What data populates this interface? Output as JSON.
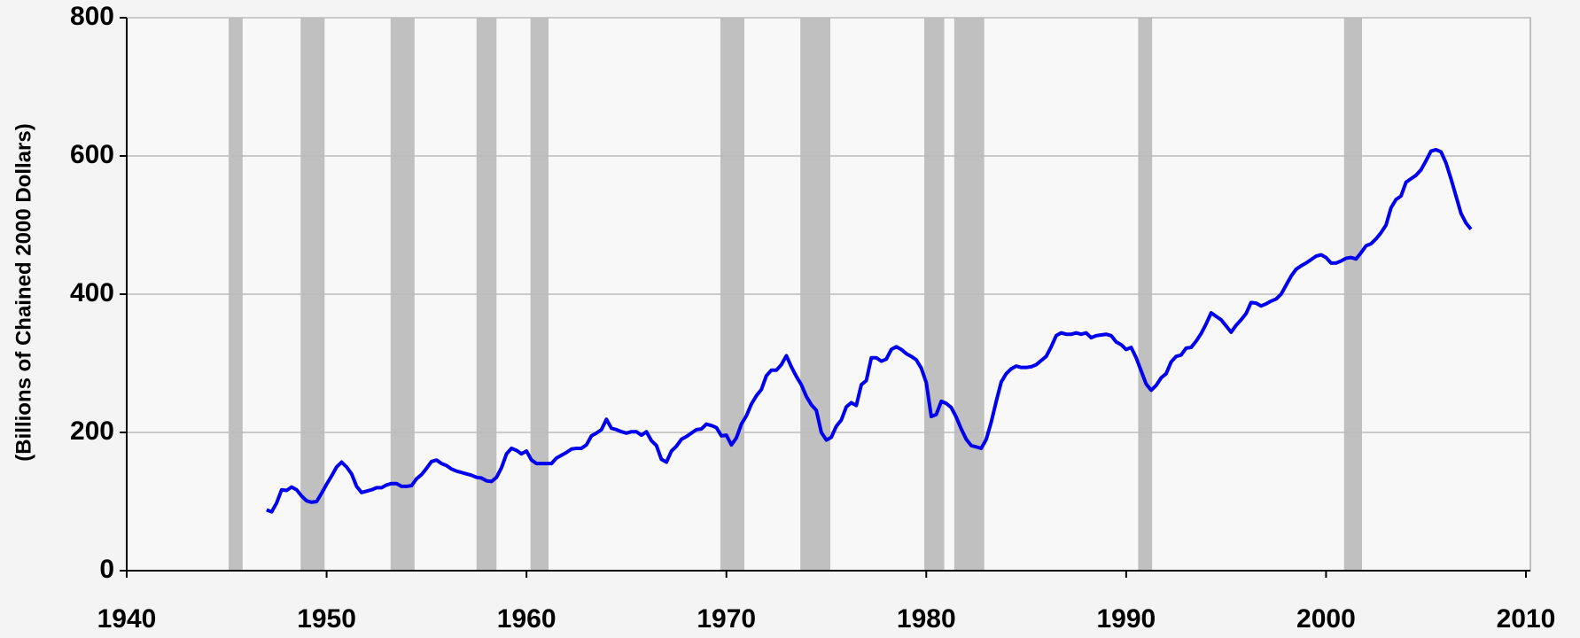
{
  "chart_data": {
    "type": "line",
    "y_axis_label": "(Billions of Chained 2000 Dollars)",
    "xlim": [
      1940,
      2010
    ],
    "xticks": [
      1940,
      1950,
      1960,
      1970,
      1980,
      1990,
      2000,
      2010
    ],
    "ylim": [
      0,
      800
    ],
    "yticks": [
      0,
      200,
      400,
      600,
      800
    ],
    "grid": true,
    "shade_color": "#c0c0c0",
    "shaded_periods": [
      [
        1945.1,
        1945.8
      ],
      [
        1948.7,
        1949.9
      ],
      [
        1953.2,
        1954.4
      ],
      [
        1957.5,
        1958.5
      ],
      [
        1960.2,
        1961.1
      ],
      [
        1969.7,
        1970.9
      ],
      [
        1973.7,
        1975.2
      ],
      [
        1979.9,
        1980.9
      ],
      [
        1981.4,
        1982.9
      ],
      [
        1990.6,
        1991.3
      ],
      [
        2000.9,
        2001.8
      ]
    ],
    "x": [
      1947,
      1947.25,
      1947.5,
      1947.75,
      1948,
      1948.25,
      1948.5,
      1948.75,
      1949,
      1949.25,
      1949.5,
      1949.75,
      1950,
      1950.25,
      1950.5,
      1950.75,
      1951,
      1951.25,
      1951.5,
      1951.75,
      1952,
      1952.25,
      1952.5,
      1952.75,
      1953,
      1953.25,
      1953.5,
      1953.75,
      1954,
      1954.25,
      1954.5,
      1954.75,
      1955,
      1955.25,
      1955.5,
      1955.75,
      1956,
      1956.25,
      1956.5,
      1956.75,
      1957,
      1957.25,
      1957.5,
      1957.75,
      1958,
      1958.25,
      1958.5,
      1958.75,
      1959,
      1959.25,
      1959.5,
      1959.75,
      1960,
      1960.25,
      1960.5,
      1960.75,
      1961,
      1961.25,
      1961.5,
      1961.75,
      1962,
      1962.25,
      1962.5,
      1962.75,
      1963,
      1963.25,
      1963.5,
      1963.75,
      1964,
      1964.25,
      1964.5,
      1964.75,
      1965,
      1965.25,
      1965.5,
      1965.75,
      1966,
      1966.25,
      1966.5,
      1966.75,
      1967,
      1967.25,
      1967.5,
      1967.75,
      1968,
      1968.25,
      1968.5,
      1968.75,
      1969,
      1969.25,
      1969.5,
      1969.75,
      1970,
      1970.25,
      1970.5,
      1970.75,
      1971,
      1971.25,
      1971.5,
      1971.75,
      1972,
      1972.25,
      1972.5,
      1972.75,
      1973,
      1973.25,
      1973.5,
      1973.75,
      1974,
      1974.25,
      1974.5,
      1974.75,
      1975,
      1975.25,
      1975.5,
      1975.75,
      1976,
      1976.25,
      1976.5,
      1976.75,
      1977,
      1977.25,
      1977.5,
      1977.75,
      1978,
      1978.25,
      1978.5,
      1978.75,
      1979,
      1979.25,
      1979.5,
      1979.75,
      1980,
      1980.25,
      1980.5,
      1980.75,
      1981,
      1981.25,
      1981.5,
      1981.75,
      1982,
      1982.25,
      1982.5,
      1982.75,
      1983,
      1983.25,
      1983.5,
      1983.75,
      1984,
      1984.25,
      1984.5,
      1984.75,
      1985,
      1985.25,
      1985.5,
      1985.75,
      1986,
      1986.25,
      1986.5,
      1986.75,
      1987,
      1987.25,
      1987.5,
      1987.75,
      1988,
      1988.25,
      1988.5,
      1988.75,
      1989,
      1989.25,
      1989.5,
      1989.75,
      1990,
      1990.25,
      1990.5,
      1990.75,
      1991,
      1991.25,
      1991.5,
      1991.75,
      1992,
      1992.25,
      1992.5,
      1992.75,
      1993,
      1993.25,
      1993.5,
      1993.75,
      1994,
      1994.25,
      1994.5,
      1994.75,
      1995,
      1995.25,
      1995.5,
      1995.75,
      1996,
      1996.25,
      1996.5,
      1996.75,
      1997,
      1997.25,
      1997.5,
      1997.75,
      1998,
      1998.25,
      1998.5,
      1998.75,
      1999,
      1999.25,
      1999.5,
      1999.75,
      2000,
      2000.25,
      2000.5,
      2000.75,
      2001,
      2001.25,
      2001.5,
      2001.75,
      2002,
      2002.25,
      2002.5,
      2002.75,
      2003,
      2003.25,
      2003.5,
      2003.75,
      2004,
      2004.25,
      2004.5,
      2004.75,
      2005,
      2005.25,
      2005.5,
      2005.75,
      2006,
      2006.25,
      2006.5,
      2006.75,
      2007,
      2007.25
    ],
    "series": [
      {
        "color": "#0000ee",
        "values": [
          88,
          85,
          98,
          117,
          116,
          121,
          117,
          108,
          101,
          99,
          100,
          112,
          125,
          137,
          150,
          157,
          150,
          140,
          122,
          113,
          115,
          117,
          120,
          120,
          124,
          126,
          126,
          122,
          122,
          123,
          133,
          139,
          148,
          158,
          160,
          155,
          152,
          147,
          144,
          142,
          140,
          138,
          135,
          134,
          130,
          129,
          135,
          149,
          169,
          177,
          174,
          169,
          173,
          160,
          155,
          155,
          155,
          155,
          163,
          167,
          171,
          176,
          177,
          177,
          182,
          195,
          199,
          204,
          219,
          206,
          204,
          201,
          199,
          201,
          201,
          196,
          201,
          188,
          181,
          161,
          157,
          173,
          180,
          190,
          194,
          199,
          204,
          205,
          212,
          210,
          207,
          195,
          196,
          182,
          192,
          212,
          224,
          241,
          253,
          262,
          282,
          290,
          290,
          298,
          311,
          295,
          281,
          269,
          252,
          240,
          232,
          200,
          189,
          193,
          209,
          218,
          237,
          243,
          239,
          269,
          275,
          308,
          308,
          303,
          306,
          320,
          324,
          320,
          314,
          310,
          305,
          293,
          272,
          223,
          226,
          245,
          242,
          236,
          222,
          205,
          190,
          181,
          179,
          177,
          190,
          215,
          245,
          273,
          285,
          292,
          296,
          294,
          294,
          295,
          298,
          304,
          310,
          324,
          340,
          344,
          342,
          342,
          344,
          342,
          344,
          337,
          340,
          341,
          342,
          340,
          331,
          327,
          320,
          323,
          308,
          289,
          270,
          261,
          268,
          279,
          285,
          302,
          310,
          312,
          322,
          323,
          332,
          343,
          357,
          373,
          368,
          363,
          354,
          345,
          355,
          363,
          372,
          388,
          387,
          383,
          386,
          390,
          393,
          400,
          413,
          426,
          436,
          441,
          445,
          450,
          455,
          457,
          453,
          445,
          445,
          448,
          452,
          453,
          451,
          460,
          470,
          473,
          480,
          489,
          500,
          525,
          537,
          542,
          562,
          567,
          572,
          580,
          593,
          607,
          609,
          606,
          590,
          567,
          542,
          517,
          503,
          494
        ]
      }
    ]
  }
}
